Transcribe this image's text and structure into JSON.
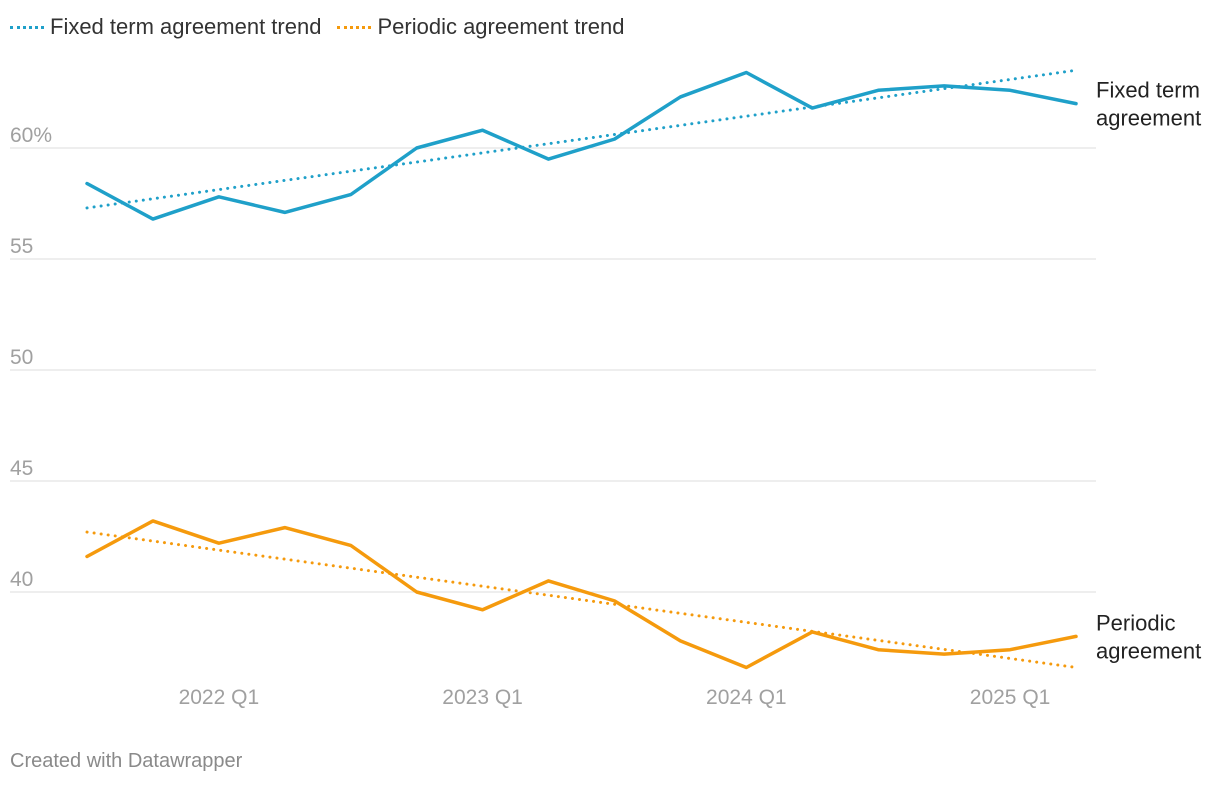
{
  "colors": {
    "fixed": "#1fa0c9",
    "periodic": "#f59a0d",
    "grid": "#dddddd",
    "axis_text": "#a0a0a0",
    "label_text": "#222222"
  },
  "legend": [
    {
      "label": "Fixed term agreement trend",
      "color": "#1fa0c9"
    },
    {
      "label": "Periodic agreement trend",
      "color": "#f59a0d"
    }
  ],
  "chart_data": {
    "type": "line",
    "title": "",
    "xlabel": "",
    "ylabel": "",
    "ylim": [
      36.1,
      64
    ],
    "yticks": [
      {
        "value": 40,
        "label": "40"
      },
      {
        "value": 45,
        "label": "45"
      },
      {
        "value": 50,
        "label": "50"
      },
      {
        "value": 55,
        "label": "55"
      },
      {
        "value": 60,
        "label": "60%"
      }
    ],
    "x": [
      "2021 Q3",
      "2021 Q4",
      "2022 Q1",
      "2022 Q2",
      "2022 Q3",
      "2022 Q4",
      "2023 Q1",
      "2023 Q2",
      "2023 Q3",
      "2023 Q4",
      "2024 Q1",
      "2024 Q2",
      "2024 Q3",
      "2024 Q4",
      "2025 Q1",
      "2025 Q2"
    ],
    "xticks": [
      "2022 Q1",
      "2023 Q1",
      "2024 Q1",
      "2025 Q1"
    ],
    "series": [
      {
        "name": "Fixed term agreement",
        "label_lines": [
          "Fixed term",
          "agreement"
        ],
        "color": "#1fa0c9",
        "values": [
          58.4,
          56.8,
          57.8,
          57.1,
          57.9,
          60.0,
          60.8,
          59.5,
          60.4,
          62.3,
          63.4,
          61.8,
          62.6,
          62.8,
          62.6,
          62.0
        ]
      },
      {
        "name": "Periodic agreement",
        "label_lines": [
          "Periodic",
          "agreement"
        ],
        "color": "#f59a0d",
        "values": [
          41.6,
          43.2,
          42.2,
          42.9,
          42.1,
          40.0,
          39.2,
          40.5,
          39.6,
          37.8,
          36.6,
          38.2,
          37.4,
          37.2,
          37.4,
          38.0
        ]
      }
    ],
    "trends": [
      {
        "name": "Fixed term agreement trend",
        "color": "#1fa0c9",
        "start": 57.3,
        "end": 63.5
      },
      {
        "name": "Periodic agreement trend",
        "color": "#f59a0d",
        "start": 42.7,
        "end": 36.6
      }
    ]
  },
  "footer": {
    "credit": "Created with Datawrapper"
  }
}
